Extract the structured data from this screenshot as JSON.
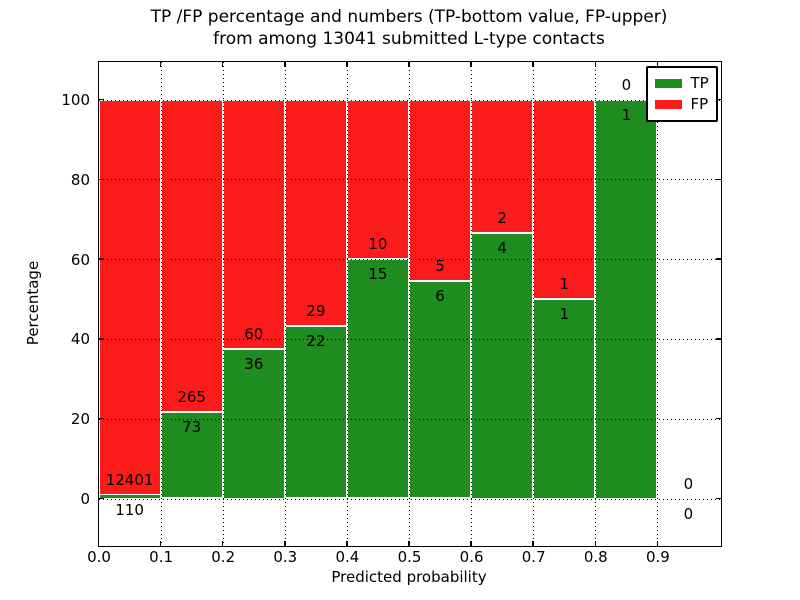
{
  "title": {
    "line1": "TP /FP percentage and numbers (TP-bottom value, FP-upper)",
    "line2": "from among 13041 submitted L-type contacts"
  },
  "axes": {
    "xlabel": "Predicted probability",
    "ylabel": "Percentage"
  },
  "legend": [
    {
      "label": "TP",
      "color": "#1e8c1e"
    },
    {
      "label": "FP",
      "color": "#fc1b1b"
    }
  ],
  "chart_data": {
    "type": "bar",
    "stacked": true,
    "normalized_to_percent": true,
    "title": "TP /FP percentage and numbers (TP-bottom value, FP-upper)\nfrom among 13041 submitted L-type contacts",
    "xlabel": "Predicted probability",
    "ylabel": "Percentage",
    "total_contacts": 13041,
    "bin_edges": [
      0.0,
      0.1,
      0.2,
      0.3,
      0.4,
      0.5,
      0.6,
      0.7,
      0.8,
      0.9,
      1.0
    ],
    "categories": [
      "0.0-0.1",
      "0.1-0.2",
      "0.2-0.3",
      "0.3-0.4",
      "0.4-0.5",
      "0.5-0.6",
      "0.6-0.7",
      "0.7-0.8",
      "0.8-0.9",
      "0.9-1.0"
    ],
    "series": [
      {
        "name": "TP",
        "color": "#1e8c1e",
        "values": [
          110,
          73,
          36,
          22,
          15,
          6,
          4,
          1,
          1,
          0
        ]
      },
      {
        "name": "FP",
        "color": "#fc1b1b",
        "values": [
          12401,
          265,
          60,
          29,
          10,
          5,
          2,
          1,
          0,
          0
        ]
      }
    ],
    "tp_percent_heights": [
      0.9,
      21.6,
      37.5,
      43.1,
      60.0,
      54.5,
      66.7,
      50.0,
      100.0,
      null
    ],
    "xticks": [
      "0.0",
      "0.1",
      "0.2",
      "0.3",
      "0.4",
      "0.5",
      "0.6",
      "0.7",
      "0.8",
      "0.9"
    ],
    "yticks": [
      "0",
      "20",
      "40",
      "60",
      "80",
      "100"
    ],
    "xlim": [
      0.0,
      1.0
    ],
    "ylim": [
      -11.5,
      109.5
    ],
    "grid": "dotted",
    "legend_position": "upper right"
  }
}
